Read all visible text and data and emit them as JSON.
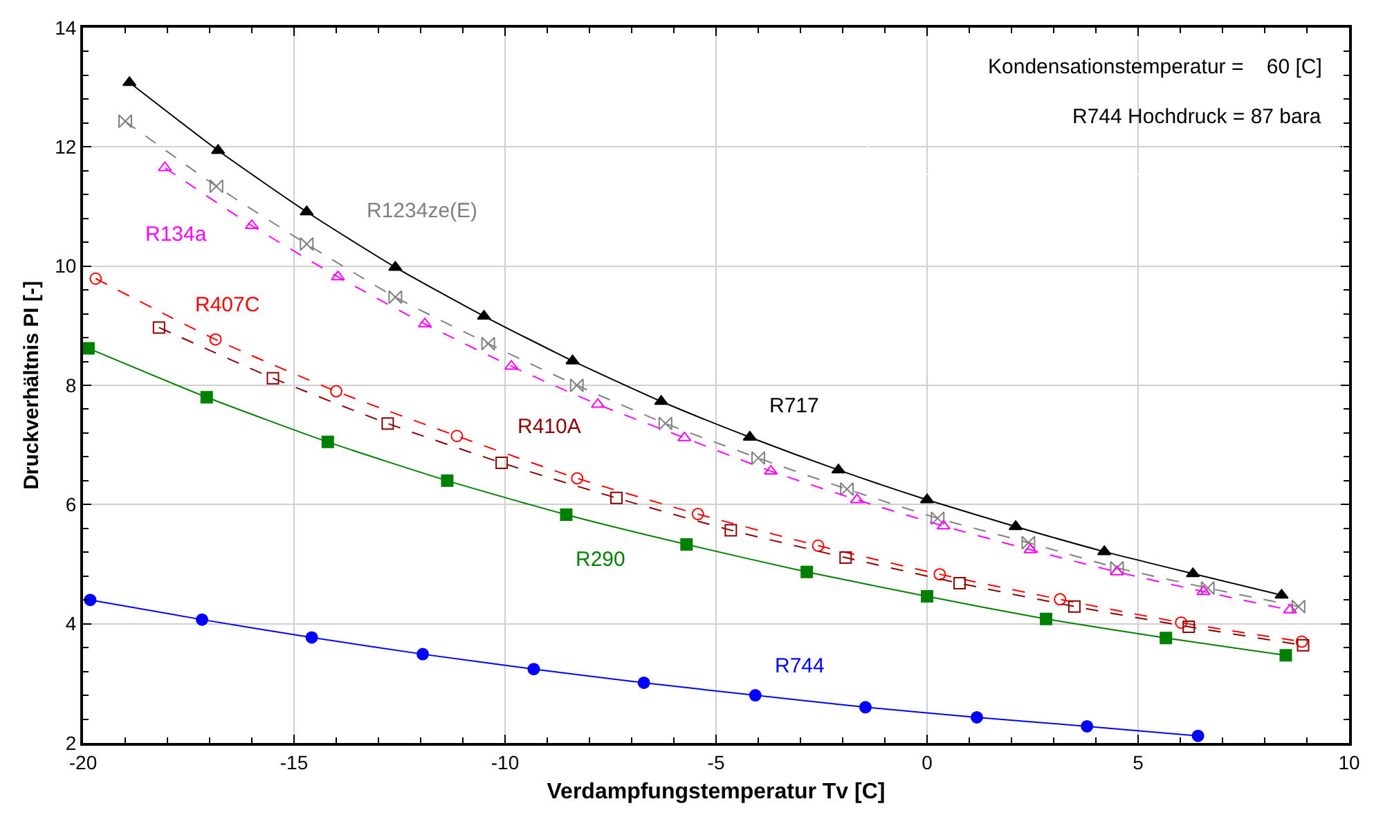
{
  "chart_data": {
    "type": "line",
    "xlabel": "Verdampfungstemperatur Tv [C]",
    "ylabel": "Druckverhältnis PI [-]",
    "xlim": [
      -20,
      10
    ],
    "xticks": [
      -20,
      -15,
      -10,
      -5,
      0,
      5,
      10
    ],
    "ylim": [
      2,
      14
    ],
    "yticks": [
      2,
      4,
      6,
      8,
      10,
      12,
      14
    ],
    "grid": true,
    "legend": false,
    "annotations": [
      "Kondensationstemperatur =    60 [C]",
      "R744 Hochdruck = 87 bara"
    ],
    "series": [
      {
        "name": "R717",
        "color": "#000000",
        "marker": "triangle",
        "line_style": "solid",
        "x": [
          -18.9,
          -16.8,
          -14.7,
          -12.6,
          -10.5,
          -8.4,
          -6.3,
          -4.2,
          -2.1,
          0,
          2.1,
          4.2,
          6.3,
          8.4
        ],
        "values": [
          13.08,
          11.94,
          10.91,
          9.98,
          9.16,
          8.41,
          7.73,
          7.13,
          6.58,
          6.08,
          5.63,
          5.21,
          4.84,
          4.48
        ]
      },
      {
        "name": "R1234ze(E)",
        "color": "#808080",
        "marker": "diamond",
        "line_style": "dashed",
        "x": [
          -19.0,
          -16.84,
          -14.7,
          -12.6,
          -10.4,
          -8.3,
          -6.2,
          -4.0,
          -1.9,
          0.25,
          2.4,
          4.5,
          6.65,
          8.8
        ],
        "values": [
          12.43,
          11.34,
          10.37,
          9.48,
          8.7,
          8.0,
          7.36,
          6.78,
          6.26,
          5.77,
          5.36,
          4.94,
          4.6,
          4.29
        ]
      },
      {
        "name": "R134a",
        "color": "#ff00ff",
        "marker": "triangle-open",
        "line_style": "dashed",
        "x": [
          -18.06,
          -16.0,
          -13.96,
          -11.9,
          -9.85,
          -7.8,
          -5.75,
          -3.7,
          -1.66,
          0.39,
          2.45,
          4.5,
          6.55,
          8.6
        ],
        "values": [
          11.65,
          10.68,
          9.82,
          9.03,
          8.32,
          7.68,
          7.12,
          6.56,
          6.08,
          5.64,
          5.24,
          4.87,
          4.54,
          4.23
        ]
      },
      {
        "name": "R407C",
        "color": "#ff0000",
        "marker": "circle-open",
        "line_style": "dashed",
        "x": [
          -19.7,
          -16.86,
          -14.0,
          -11.14,
          -8.29,
          -5.43,
          -2.58,
          0.3,
          3.15,
          6.02,
          8.88
        ],
        "values": [
          9.79,
          8.77,
          7.9,
          7.15,
          6.44,
          5.84,
          5.31,
          4.83,
          4.41,
          4.02,
          3.7
        ]
      },
      {
        "name": "R410A",
        "color": "#8b0000",
        "marker": "square-open",
        "line_style": "dashed",
        "x": [
          -18.2,
          -15.5,
          -12.78,
          -10.08,
          -7.36,
          -4.65,
          -1.93,
          0.77,
          3.49,
          6.2,
          8.91
        ],
        "values": [
          8.97,
          8.12,
          7.36,
          6.7,
          6.11,
          5.57,
          5.11,
          4.68,
          4.29,
          3.95,
          3.64
        ]
      },
      {
        "name": "R290",
        "color": "#008000",
        "marker": "square",
        "line_style": "solid",
        "x": [
          -19.87,
          -17.07,
          -14.2,
          -11.37,
          -8.55,
          -5.7,
          -2.85,
          0,
          2.82,
          5.66,
          8.5
        ],
        "values": [
          8.62,
          7.8,
          7.05,
          6.4,
          5.83,
          5.33,
          4.87,
          4.46,
          4.08,
          3.76,
          3.47
        ]
      },
      {
        "name": "R744",
        "color": "#0000ff",
        "marker": "circle",
        "line_style": "solid",
        "x": [
          -19.83,
          -17.18,
          -14.58,
          -11.95,
          -9.32,
          -6.71,
          -4.07,
          -1.46,
          1.18,
          3.79,
          6.42
        ],
        "values": [
          4.4,
          4.07,
          3.77,
          3.49,
          3.24,
          3.01,
          2.8,
          2.6,
          2.43,
          2.28,
          2.12
        ]
      }
    ]
  }
}
